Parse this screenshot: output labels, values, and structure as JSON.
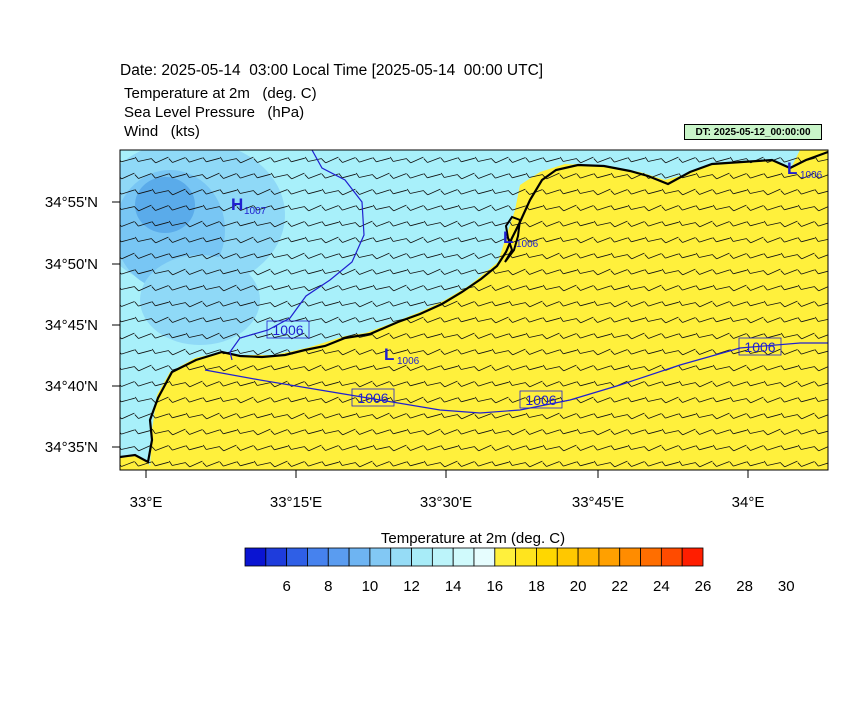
{
  "header": {
    "date_line": "Date: 2025-05-14  03:00 Local Time [2025-05-14  00:00 UTC]",
    "field_1": "Temperature at 2m   (deg. C)",
    "field_2": "Sea Level Pressure   (hPa)",
    "field_3": "Wind   (kts)",
    "run_badge": "DT: 2025-05-12_00:00:00"
  },
  "map": {
    "lat_ticks": [
      "34°55'N",
      "34°50'N",
      "34°45'N",
      "34°40'N",
      "34°35'N"
    ],
    "lon_ticks": [
      "33°E",
      "33°15'E",
      "33°30'E",
      "33°45'E",
      "34°E"
    ],
    "land_color": "#fff03c",
    "sea_colors": [
      "#a8f0fa",
      "#8fd9f7",
      "#78c6f4",
      "#5aabea"
    ],
    "pressure_contour_color": "#2020d0",
    "contour_labels": [
      "1006",
      "1006",
      "1006",
      "1006"
    ],
    "pressure_centers": [
      {
        "type": "H",
        "value": "1007"
      },
      {
        "type": "L",
        "value": "1006"
      },
      {
        "type": "L",
        "value": "1006"
      },
      {
        "type": "L",
        "value": "1006"
      }
    ]
  },
  "colorbar": {
    "title": "Temperature at 2m  (deg. C)",
    "colors": [
      "#0a14d2",
      "#1e3cdc",
      "#2f5fe6",
      "#4682ee",
      "#5a9cf0",
      "#6eb4f2",
      "#82c8f4",
      "#96dcf6",
      "#a8ecf8",
      "#bcf4fa",
      "#d0fafc",
      "#e6fdfe",
      "#fff03c",
      "#ffe41e",
      "#ffd700",
      "#ffc800",
      "#ffb400",
      "#ffa000",
      "#ff8c00",
      "#ff6e00",
      "#ff4b00",
      "#ff1e00"
    ],
    "tick_labels": [
      "6",
      "8",
      "10",
      "12",
      "14",
      "16",
      "18",
      "20",
      "22",
      "24",
      "26",
      "28",
      "30"
    ]
  }
}
